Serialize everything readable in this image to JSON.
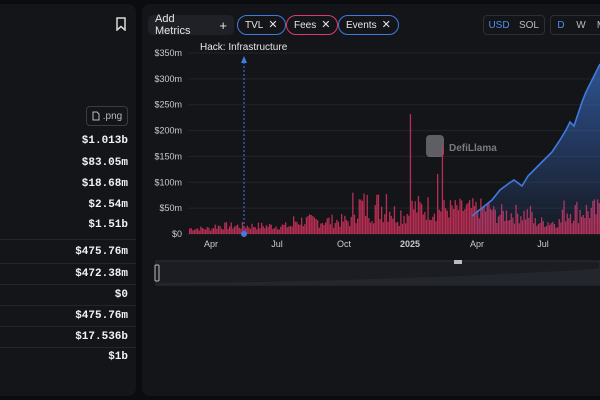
{
  "left": {
    "export_png_label": ".png",
    "stats": [
      "$1.013b",
      "$83.05m",
      "$18.68m",
      "$2.54m",
      "$1.51b",
      "$475.76m",
      "$472.38m",
      "$0",
      "$475.76m",
      "$17.536b",
      "$1b"
    ]
  },
  "toolbar": {
    "add_metrics_label": "Add Metrics",
    "add_icon": "+",
    "pills": [
      {
        "label": "TVL",
        "color": "#3f7be0"
      },
      {
        "label": "Fees",
        "color": "#e0396a"
      },
      {
        "label": "Events",
        "color": "#3f7be0"
      }
    ],
    "currency_options": [
      "USD",
      "SOL"
    ],
    "currency_selected": "USD",
    "interval_options": [
      "D",
      "W",
      "M"
    ],
    "interval_selected": "D"
  },
  "chart_data": {
    "type": "bar",
    "y_ticks": [
      "$0",
      "$50m",
      "$100m",
      "$150m",
      "$200m",
      "$250m",
      "$300m",
      "$350m"
    ],
    "x_ticks": [
      "Apr",
      "Jul",
      "Oct",
      "2025",
      "Apr",
      "Jul"
    ],
    "ylim": [
      0,
      350
    ],
    "annotation": "Hack: Infrastructure",
    "watermark": "DefiLlama",
    "series": [
      {
        "name": "TVL",
        "color": "#3f7be0"
      },
      {
        "name": "Fees",
        "color": "#e0396a"
      }
    ]
  }
}
